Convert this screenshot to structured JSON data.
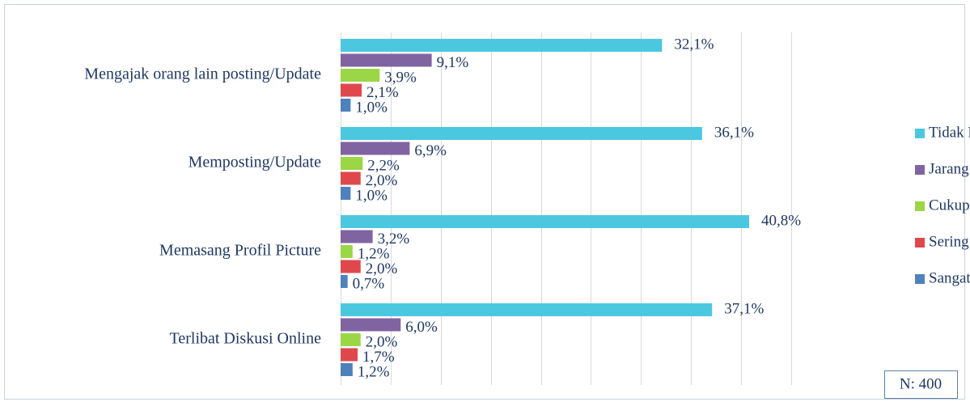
{
  "chart_data": {
    "type": "bar",
    "orientation": "horizontal",
    "categories": [
      "Mengajak orang lain posting/Update",
      "Memposting/Update",
      "Memasang Profil Picture",
      "Terlibat Diskusi Online"
    ],
    "series": [
      {
        "name": "Tidak Pernah",
        "color": "#4bc8e0",
        "values": [
          32.1,
          36.1,
          40.8,
          37.1
        ],
        "value_labels": [
          "32,1%",
          "36,1%",
          "40,8%",
          "37,1%"
        ]
      },
      {
        "name": "Jarang",
        "color": "#8064a2",
        "values": [
          9.1,
          6.9,
          3.2,
          6.0
        ],
        "value_labels": [
          "9,1%",
          "6,9%",
          "3,2%",
          "6,0%"
        ]
      },
      {
        "name": "Cukup Sering",
        "color": "#9bd646",
        "values": [
          3.9,
          2.2,
          1.2,
          2.0
        ],
        "value_labels": [
          "3,9%",
          "2,2%",
          "1,2%",
          "2,0%"
        ]
      },
      {
        "name": "Sering",
        "color": "#e0474c",
        "values": [
          2.1,
          2.0,
          2.0,
          1.7
        ],
        "value_labels": [
          "2,1%",
          "2,0%",
          "2,0%",
          "1,7%"
        ]
      },
      {
        "name": "Sangat Sering",
        "color": "#4f81bd",
        "values": [
          1.0,
          1.0,
          0.7,
          1.2
        ],
        "value_labels": [
          "1,0%",
          "1,0%",
          "0,7%",
          "1,2%"
        ]
      }
    ],
    "xlim": [
      0,
      45
    ],
    "xticks": [
      0,
      5,
      10,
      15,
      20,
      25,
      30,
      35,
      40,
      45
    ],
    "grid": true,
    "legend": "right",
    "annotation": "N: 400"
  }
}
